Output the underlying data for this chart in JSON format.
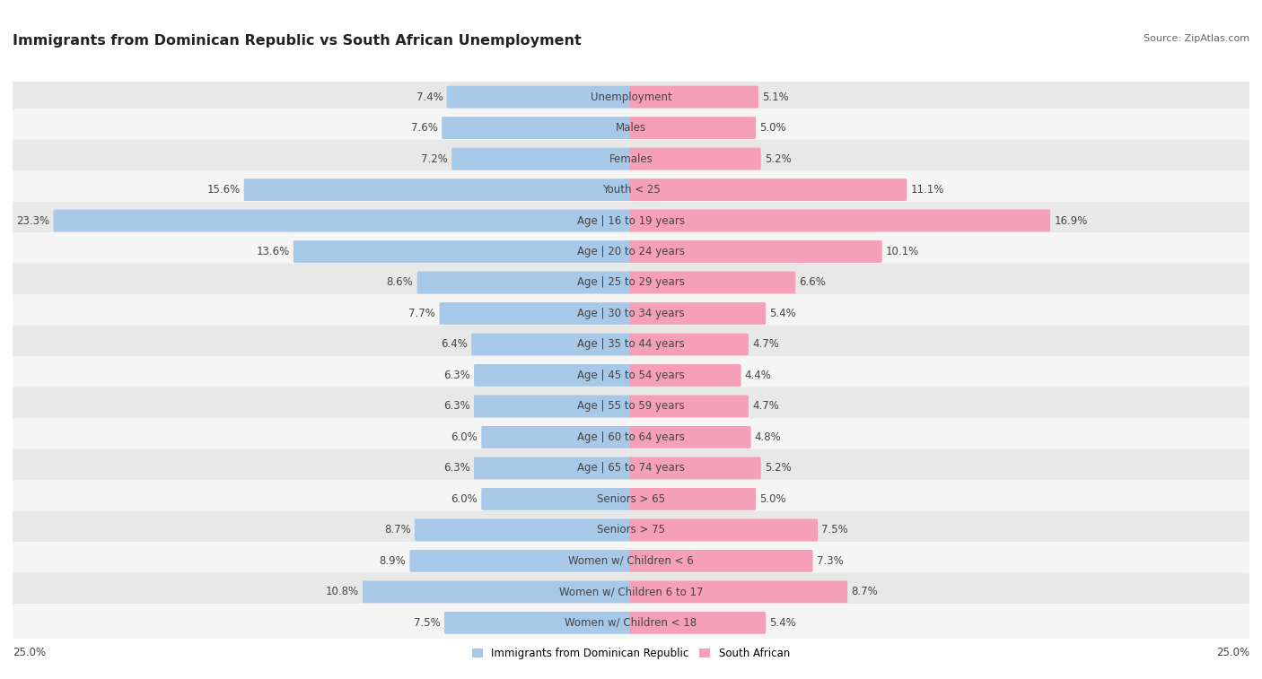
{
  "title": "Immigrants from Dominican Republic vs South African Unemployment",
  "source": "Source: ZipAtlas.com",
  "categories": [
    "Unemployment",
    "Males",
    "Females",
    "Youth < 25",
    "Age | 16 to 19 years",
    "Age | 20 to 24 years",
    "Age | 25 to 29 years",
    "Age | 30 to 34 years",
    "Age | 35 to 44 years",
    "Age | 45 to 54 years",
    "Age | 55 to 59 years",
    "Age | 60 to 64 years",
    "Age | 65 to 74 years",
    "Seniors > 65",
    "Seniors > 75",
    "Women w/ Children < 6",
    "Women w/ Children 6 to 17",
    "Women w/ Children < 18"
  ],
  "left_values": [
    7.4,
    7.6,
    7.2,
    15.6,
    23.3,
    13.6,
    8.6,
    7.7,
    6.4,
    6.3,
    6.3,
    6.0,
    6.3,
    6.0,
    8.7,
    8.9,
    10.8,
    7.5
  ],
  "right_values": [
    5.1,
    5.0,
    5.2,
    11.1,
    16.9,
    10.1,
    6.6,
    5.4,
    4.7,
    4.4,
    4.7,
    4.8,
    5.2,
    5.0,
    7.5,
    7.3,
    8.7,
    5.4
  ],
  "left_color": "#a8c8e8",
  "right_color": "#f5a0b8",
  "label_left": "Immigrants from Dominican Republic",
  "label_right": "South African",
  "max_val": 25.0,
  "bar_height": 0.62,
  "row_colors": [
    "#e8e8e8",
    "#f5f5f5"
  ],
  "title_fontsize": 11.5,
  "value_fontsize": 8.5,
  "category_fontsize": 8.5,
  "source_fontsize": 8.0
}
